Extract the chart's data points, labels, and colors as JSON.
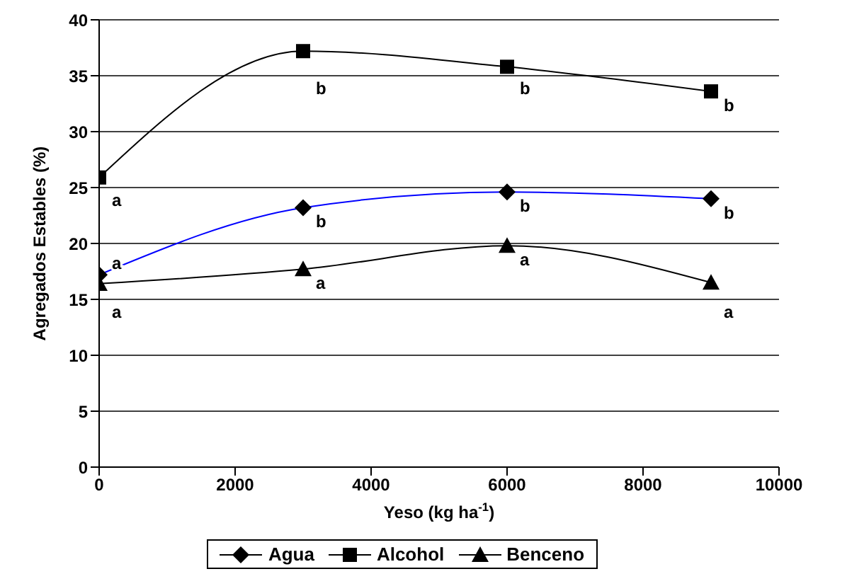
{
  "chart_data": {
    "type": "line",
    "xlabel": "Yeso (kg ha$^{-1}$)",
    "ylabel": "Agregados Estables (%)",
    "x": [
      0,
      3000,
      6000,
      9000
    ],
    "series": [
      {
        "name": "Agua",
        "color": "#0000ff",
        "marker": "diamond",
        "values": [
          17.2,
          23.2,
          24.6,
          24.0
        ]
      },
      {
        "name": "Alcohol",
        "color": "#000000",
        "marker": "square",
        "values": [
          25.9,
          37.2,
          35.8,
          33.6
        ]
      },
      {
        "name": "Benceno",
        "color": "#000000",
        "marker": "triangle",
        "values": [
          16.4,
          17.7,
          19.8,
          16.5
        ]
      }
    ],
    "xlim": [
      0,
      10000
    ],
    "xticks": [
      0,
      2000,
      4000,
      6000,
      8000,
      10000
    ],
    "ylim": [
      0,
      40
    ],
    "yticks": [
      0,
      5,
      10,
      15,
      20,
      25,
      30,
      35,
      40
    ],
    "grid": "y",
    "legend": "bottom",
    "line_style": "solid",
    "annotations": [
      {
        "text": "a",
        "x": 0,
        "y": 17.2
      },
      {
        "text": "b",
        "x": 3000,
        "y": 23.2
      },
      {
        "text": "b",
        "x": 6000,
        "y": 24.6
      },
      {
        "text": "b",
        "x": 9000,
        "y": 24.0
      },
      {
        "text": "a",
        "x": 0,
        "y": 25.9
      },
      {
        "text": "b",
        "x": 3000,
        "y": 37.2
      },
      {
        "text": "b",
        "x": 6000,
        "y": 35.8
      },
      {
        "text": "b",
        "x": 9000,
        "y": 33.6
      },
      {
        "text": "a",
        "x": 0,
        "y": 16.4
      },
      {
        "text": "a",
        "x": 3000,
        "y": 17.7
      },
      {
        "text": "a",
        "x": 6000,
        "y": 19.8
      },
      {
        "text": "a",
        "x": 9000,
        "y": 16.5
      }
    ]
  }
}
